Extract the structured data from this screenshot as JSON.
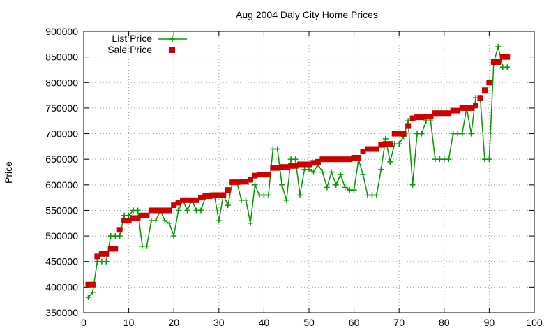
{
  "chart_data": {
    "type": "line",
    "title": "Aug 2004 Daly City Home Prices",
    "xlabel": "",
    "ylabel": "Price",
    "xlim": [
      0,
      100
    ],
    "ylim": [
      350000,
      900000
    ],
    "x_ticks": [
      "0",
      "10",
      "20",
      "30",
      "40",
      "50",
      "60",
      "70",
      "80",
      "90",
      "100"
    ],
    "y_ticks": [
      "350000",
      "400000",
      "450000",
      "500000",
      "550000",
      "600000",
      "650000",
      "700000",
      "750000",
      "800000",
      "850000",
      "900000"
    ],
    "grid": true,
    "legend_position": "top-left",
    "series": [
      {
        "name": "List Price",
        "style": "line+cross",
        "color": "#009900",
        "x": [
          1,
          2,
          3,
          4,
          5,
          6,
          7,
          8,
          9,
          10,
          11,
          12,
          13,
          14,
          15,
          16,
          17,
          18,
          19,
          20,
          21,
          22,
          23,
          24,
          25,
          26,
          27,
          28,
          29,
          30,
          31,
          32,
          33,
          34,
          35,
          36,
          37,
          38,
          39,
          40,
          41,
          42,
          43,
          44,
          45,
          46,
          47,
          48,
          49,
          50,
          51,
          52,
          53,
          54,
          55,
          56,
          57,
          58,
          59,
          60,
          61,
          62,
          63,
          64,
          65,
          66,
          67,
          68,
          69,
          70,
          71,
          72,
          73,
          74,
          75,
          76,
          77,
          78,
          79,
          80,
          81,
          82,
          83,
          84,
          85,
          86,
          87,
          88,
          89,
          90,
          91,
          92,
          93,
          94
        ],
        "values": [
          380000,
          390000,
          450000,
          450000,
          450000,
          500000,
          500000,
          500000,
          540000,
          540000,
          550000,
          550000,
          480000,
          480000,
          530000,
          530000,
          550000,
          530000,
          525000,
          500000,
          550000,
          570000,
          550000,
          570000,
          550000,
          550000,
          575000,
          580000,
          580000,
          530000,
          580000,
          560000,
          605000,
          605000,
          570000,
          570000,
          525000,
          600000,
          580000,
          580000,
          580000,
          670000,
          670000,
          600000,
          570000,
          650000,
          650000,
          580000,
          630000,
          630000,
          625000,
          640000,
          625000,
          595000,
          625000,
          600000,
          620000,
          595000,
          590000,
          590000,
          650000,
          620000,
          580000,
          580000,
          580000,
          630000,
          690000,
          645000,
          680000,
          680000,
          695000,
          725000,
          600000,
          700000,
          700000,
          725000,
          725000,
          650000,
          650000,
          650000,
          650000,
          700000,
          700000,
          700000,
          750000,
          700000,
          770000,
          770000,
          650000,
          650000,
          840000,
          870000,
          830000,
          830000
        ]
      },
      {
        "name": "Sale Price",
        "style": "square",
        "color": "#cc0000",
        "x": [
          1,
          2,
          3,
          4,
          5,
          6,
          7,
          8,
          9,
          10,
          11,
          12,
          13,
          14,
          15,
          16,
          17,
          18,
          19,
          20,
          21,
          22,
          23,
          24,
          25,
          26,
          27,
          28,
          29,
          30,
          31,
          32,
          33,
          34,
          35,
          36,
          37,
          38,
          39,
          40,
          41,
          42,
          43,
          44,
          45,
          46,
          47,
          48,
          49,
          50,
          51,
          52,
          53,
          54,
          55,
          56,
          57,
          58,
          59,
          60,
          61,
          62,
          63,
          64,
          65,
          66,
          67,
          68,
          69,
          70,
          71,
          72,
          73,
          74,
          75,
          76,
          77,
          78,
          79,
          80,
          81,
          82,
          83,
          84,
          85,
          86,
          87,
          88,
          89,
          90,
          91,
          92,
          93,
          94
        ],
        "values": [
          405000,
          405000,
          460000,
          465000,
          465000,
          475000,
          475000,
          512000,
          530000,
          530000,
          535000,
          535000,
          540000,
          540000,
          550000,
          550000,
          550000,
          550000,
          550000,
          560000,
          565000,
          570000,
          570000,
          570000,
          570000,
          575000,
          578000,
          578000,
          580000,
          580000,
          580000,
          590000,
          605000,
          605000,
          606000,
          606000,
          610000,
          618000,
          620000,
          620000,
          620000,
          633000,
          633000,
          635000,
          635000,
          637000,
          637000,
          640000,
          640000,
          640000,
          643000,
          645000,
          650000,
          650000,
          650000,
          650000,
          650000,
          650000,
          650000,
          653000,
          653000,
          665000,
          670000,
          670000,
          670000,
          678000,
          680000,
          680000,
          700000,
          700000,
          700000,
          715000,
          730000,
          732000,
          732000,
          733000,
          733000,
          740000,
          740000,
          740000,
          740000,
          745000,
          745000,
          750000,
          750000,
          750000,
          755000,
          770000,
          785000,
          800000,
          840000,
          840000,
          850000,
          850000
        ]
      }
    ]
  }
}
